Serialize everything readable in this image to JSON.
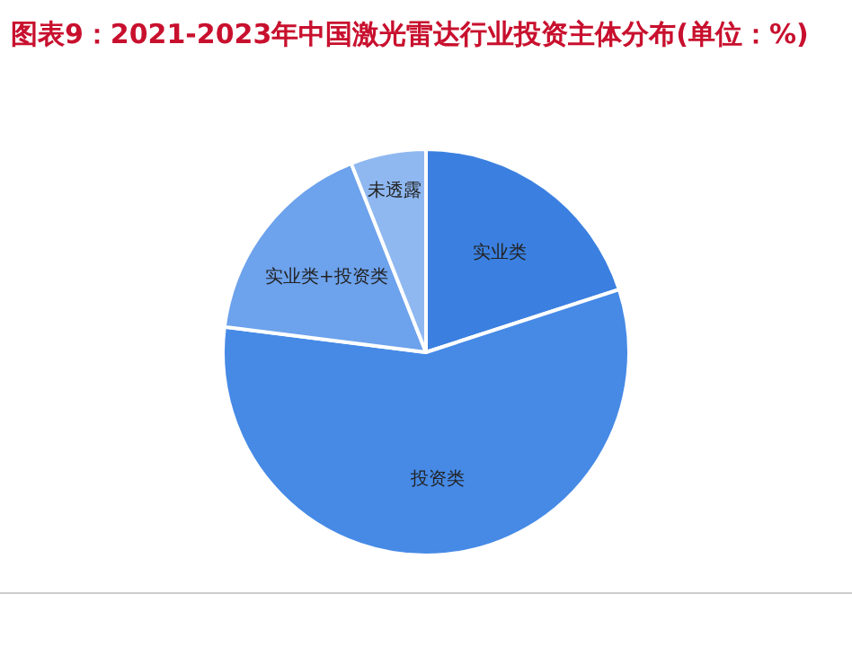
{
  "chart_data": {
    "type": "pie",
    "title": "图表9：2021-2023年中国激光雷达行业投资主体分布(单位：%)",
    "categories": [
      "实业类",
      "投资类",
      "实业类+投资类",
      "未透露"
    ],
    "values": [
      20,
      57,
      17,
      6
    ],
    "colors": [
      "#3b80e0",
      "#468ae6",
      "#6da2ec",
      "#8fb8f1"
    ]
  }
}
